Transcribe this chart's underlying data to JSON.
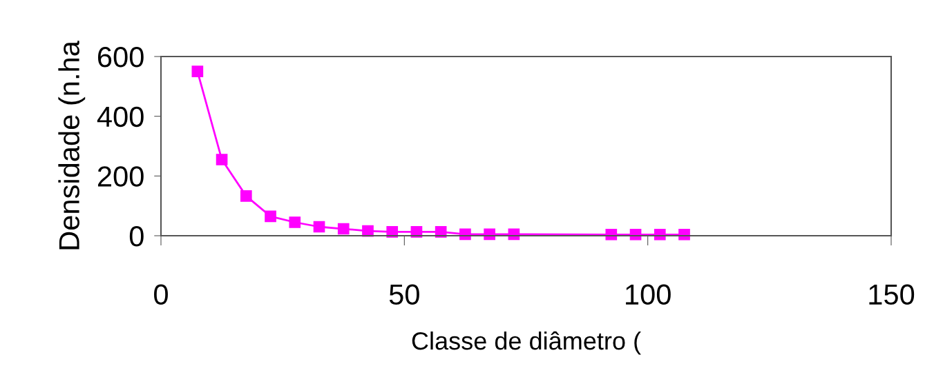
{
  "chart_data": {
    "type": "line",
    "xlabel": "Classe de diâmetro (",
    "ylabel": "Densidade (n.ha",
    "x": [
      7.5,
      12.5,
      17.5,
      22.5,
      27.5,
      32.5,
      37.5,
      42.5,
      47.5,
      52.5,
      57.5,
      62.5,
      67.5,
      72.5,
      92.5,
      97.5,
      102.5,
      107.5
    ],
    "series": [
      {
        "color": "#ff00ff",
        "values": [
          550,
          255,
          133,
          65,
          45,
          30,
          23,
          16,
          13,
          13,
          13,
          5,
          5,
          5,
          4,
          4,
          4,
          4
        ]
      }
    ],
    "xlim": [
      0,
      150
    ],
    "xticks": [
      0,
      50,
      100,
      150
    ],
    "ylim": [
      0,
      600
    ],
    "yticks": [
      0,
      200,
      400,
      600
    ],
    "marker": "square",
    "line_style": "solid",
    "grid": false,
    "legend": false
  }
}
